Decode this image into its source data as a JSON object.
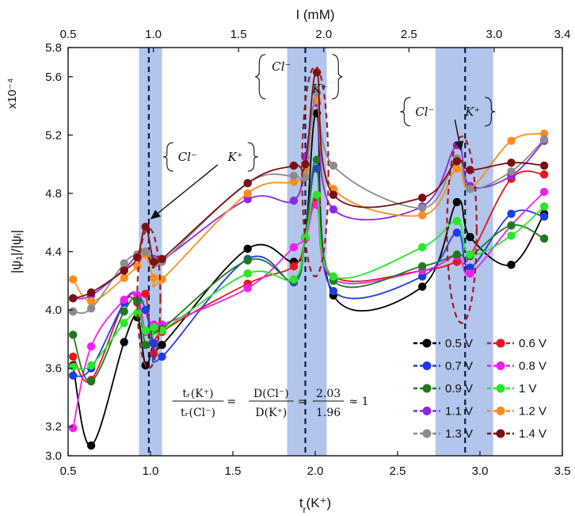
{
  "chart_data": {
    "type": "line",
    "title": "",
    "xlabel": "t",
    "xlabel_sub": "r",
    "xlabel_suffix": "(K⁺)",
    "ylabel": "|ψ₁|/|ψᵢ|",
    "y_multiplier": "x10⁻⁴",
    "top_axis_label": "I (mM)",
    "xlim": [
      0.5,
      3.5
    ],
    "ylim": [
      3.0,
      5.8
    ],
    "x_ticks": [
      "0.5",
      "1.0",
      "1.5",
      "2.0",
      "2.5",
      "3.0",
      "3.5"
    ],
    "y_ticks": [
      "3.0",
      "3.2",
      "3.6",
      "4.0",
      "4.4",
      "4.8",
      "5.2",
      "5.6",
      "5.8"
    ],
    "top_xlim": [
      0.5,
      3.4
    ],
    "top_ticks": [
      "0.5",
      "1.0",
      "1.5",
      "2.0",
      "2.5",
      "3.0",
      "3.4"
    ],
    "highlight_bands": [
      {
        "x0": 0.93,
        "x1": 1.07,
        "center": 0.99
      },
      {
        "x0": 1.83,
        "x1": 2.07,
        "center": 1.94
      },
      {
        "x0": 2.73,
        "x1": 3.08,
        "center": 2.91
      }
    ],
    "ellipses": [
      {
        "cx": 0.99,
        "cy": 4.08,
        "rx": 0.07,
        "ry": 0.48
      },
      {
        "cx": 2.0,
        "cy": 4.95,
        "rx": 0.08,
        "ry": 0.72
      },
      {
        "cx": 2.89,
        "cy": 4.55,
        "rx": 0.09,
        "ry": 0.64
      }
    ],
    "annotations": [
      {
        "text_cl": "Cl⁻",
        "text_k": "K⁺",
        "layout": "inline",
        "bx": 1.1,
        "by": 5.05,
        "ax": 0.99,
        "ay": 4.61
      },
      {
        "text_cl": "Cl⁻",
        "text_k": "K⁺",
        "layout": "stacked",
        "bx": 1.66,
        "by": 5.6,
        "ax": null,
        "ay": null
      },
      {
        "text_cl": "Cl⁻",
        "text_k": "K⁺",
        "layout": "inline",
        "bx": 2.54,
        "by": 5.36,
        "ax": 2.87,
        "ay": 5.08
      }
    ],
    "formula": {
      "lhs_num": "tᵣ(K⁺)",
      "lhs_den": "tᵣ(Cl⁻)",
      "mid_num": "D(Cl⁻)",
      "mid_den": "D(K⁺)",
      "rhs_num": "2.03",
      "rhs_den": "1.96",
      "tail": "≈ 1",
      "eq": "="
    },
    "x": [
      0.53,
      0.64,
      0.84,
      0.92,
      0.97,
      1.02,
      1.07,
      1.59,
      1.87,
      1.94,
      2.01,
      2.11,
      2.65,
      2.86,
      2.94,
      3.19,
      3.39
    ],
    "series": [
      {
        "name": "0.5 V",
        "color": "#000000",
        "values": [
          3.62,
          3.07,
          3.78,
          3.95,
          3.62,
          3.77,
          3.76,
          4.42,
          4.33,
          4.5,
          5.35,
          4.1,
          4.16,
          4.74,
          4.5,
          4.31,
          4.66
        ]
      },
      {
        "name": "0.6 V",
        "color": "#e8141d",
        "values": [
          3.68,
          3.52,
          4.05,
          4.05,
          4.11,
          3.7,
          3.85,
          4.18,
          4.3,
          4.49,
          4.76,
          4.23,
          4.27,
          4.33,
          4.37,
          4.9,
          4.93
        ]
      },
      {
        "name": "0.7 V",
        "color": "#1b3de6",
        "values": [
          3.55,
          3.6,
          4.05,
          4.1,
          4.0,
          3.77,
          3.68,
          4.35,
          4.19,
          4.5,
          4.97,
          4.13,
          4.23,
          4.53,
          4.29,
          4.66,
          4.64
        ]
      },
      {
        "name": "0.8 V",
        "color": "#f01ff0",
        "values": [
          3.19,
          3.75,
          4.07,
          4.1,
          3.85,
          3.9,
          3.9,
          4.15,
          4.43,
          4.49,
          4.72,
          4.21,
          4.27,
          4.37,
          4.25,
          4.58,
          4.81
        ]
      },
      {
        "name": "0.9 V",
        "color": "#1f7a1f",
        "values": [
          3.83,
          3.51,
          3.99,
          4.06,
          3.76,
          3.86,
          3.87,
          4.34,
          4.2,
          4.5,
          5.03,
          4.2,
          4.3,
          4.38,
          4.37,
          4.58,
          4.49
        ]
      },
      {
        "name": "1 V",
        "color": "#29e629",
        "values": [
          3.61,
          3.62,
          3.91,
          3.98,
          3.86,
          3.88,
          3.86,
          4.25,
          4.21,
          4.5,
          4.79,
          4.23,
          4.43,
          4.61,
          4.38,
          4.51,
          4.71
        ]
      },
      {
        "name": "1.1 V",
        "color": "#8b28e0",
        "values": [
          4.08,
          4.1,
          4.28,
          4.38,
          4.4,
          4.35,
          4.34,
          4.76,
          4.75,
          5.05,
          5.42,
          4.69,
          4.71,
          5.13,
          4.85,
          4.92,
          5.16
        ]
      },
      {
        "name": "1.2 V",
        "color": "#ff8c1a",
        "values": [
          4.21,
          4.06,
          4.22,
          4.3,
          4.38,
          4.22,
          4.21,
          4.8,
          4.88,
          4.96,
          5.44,
          4.83,
          4.65,
          4.97,
          4.83,
          5.16,
          5.21
        ]
      },
      {
        "name": "1.3 V",
        "color": "#8c8c8c",
        "values": [
          3.99,
          4.01,
          4.32,
          4.38,
          4.4,
          4.34,
          4.33,
          4.87,
          4.92,
          4.91,
          5.49,
          4.99,
          4.7,
          5.04,
          4.83,
          4.95,
          5.17
        ]
      },
      {
        "name": "1.4 V",
        "color": "#7a0f14",
        "values": [
          4.08,
          4.12,
          4.27,
          4.36,
          4.57,
          4.33,
          4.35,
          4.87,
          4.99,
          5.0,
          5.63,
          4.79,
          4.77,
          5.02,
          4.96,
          5.01,
          4.99
        ]
      }
    ],
    "legend_position": "bottom-right",
    "legend_columns": 2,
    "grid": false
  }
}
